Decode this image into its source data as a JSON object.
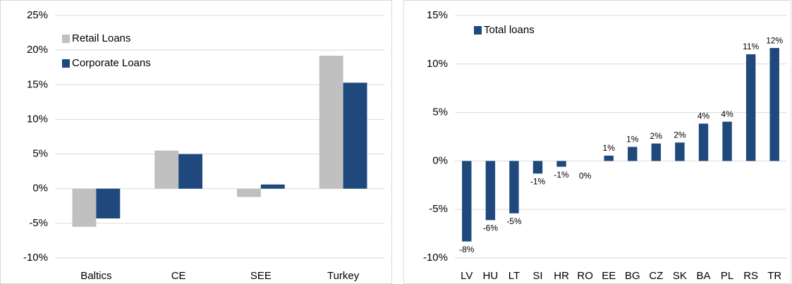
{
  "chart_data": [
    {
      "type": "bar",
      "categories": [
        "Baltics",
        "CE",
        "SEE",
        "Turkey"
      ],
      "series": [
        {
          "name": "Retail Loans",
          "color": "#c0c0c0",
          "values": [
            -5.5,
            5.5,
            -1.2,
            19.2
          ]
        },
        {
          "name": "Corporate Loans",
          "color": "#1f497d",
          "values": [
            -4.3,
            5.0,
            0.6,
            15.3
          ]
        }
      ],
      "ylim": [
        -10,
        25
      ],
      "yticks": [
        {
          "value": -10,
          "label": "-10%"
        },
        {
          "value": -5,
          "label": "-5%"
        },
        {
          "value": 0,
          "label": "0%"
        },
        {
          "value": 5,
          "label": "5%"
        },
        {
          "value": 10,
          "label": "10%"
        },
        {
          "value": 15,
          "label": "15%"
        },
        {
          "value": 20,
          "label": "20%"
        },
        {
          "value": 25,
          "label": "25%"
        }
      ],
      "grid": true,
      "legend": "top-left"
    },
    {
      "type": "bar",
      "categories": [
        "LV",
        "HU",
        "LT",
        "SI",
        "HR",
        "RO",
        "EE",
        "BG",
        "CZ",
        "SK",
        "BA",
        "PL",
        "RS",
        "TR"
      ],
      "series": [
        {
          "name": "Total loans",
          "color": "#1f497d",
          "values": [
            -8.3,
            -6.1,
            -5.4,
            -1.3,
            -0.6,
            0,
            0.55,
            1.45,
            1.8,
            1.9,
            3.85,
            4.05,
            11.0,
            11.65
          ],
          "value_labels": [
            "-8%",
            "-6%",
            "-5%",
            "-1%",
            "-1%",
            "0%",
            "1%",
            "1%",
            "2%",
            "2%",
            "4%",
            "4%",
            "11%",
            "12%"
          ]
        }
      ],
      "ylim": [
        -10,
        15
      ],
      "yticks": [
        {
          "value": -10,
          "label": "-10%"
        },
        {
          "value": -5,
          "label": "-5%"
        },
        {
          "value": 0,
          "label": "0%"
        },
        {
          "value": 5,
          "label": "5%"
        },
        {
          "value": 10,
          "label": "10%"
        },
        {
          "value": 15,
          "label": "15%"
        }
      ],
      "grid": true,
      "legend": "top-left"
    }
  ]
}
